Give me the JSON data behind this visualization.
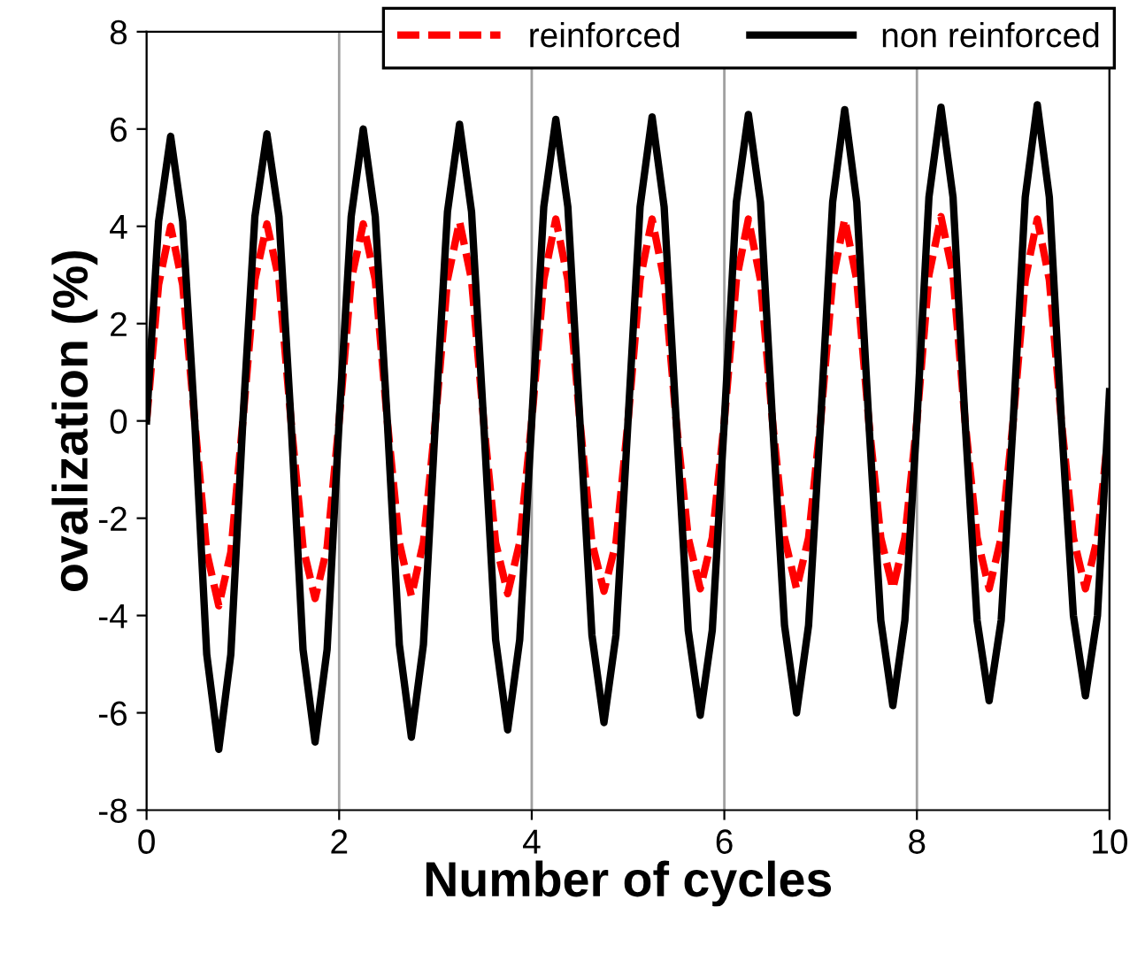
{
  "chart_data": {
    "type": "line",
    "xlabel": "Number of cycles",
    "ylabel": "ovalization (%)",
    "x": [
      0,
      0.125,
      0.25,
      0.375,
      0.5,
      0.625,
      0.75,
      0.875,
      1,
      1.125,
      1.25,
      1.375,
      1.5,
      1.625,
      1.75,
      1.875,
      2,
      2.125,
      2.25,
      2.375,
      2.5,
      2.625,
      2.75,
      2.875,
      3,
      3.125,
      3.25,
      3.375,
      3.5,
      3.625,
      3.75,
      3.875,
      4,
      4.125,
      4.25,
      4.375,
      4.5,
      4.625,
      4.75,
      4.875,
      5,
      5.125,
      5.25,
      5.375,
      5.5,
      5.625,
      5.75,
      5.875,
      6,
      6.125,
      6.25,
      6.375,
      6.5,
      6.625,
      6.75,
      6.875,
      7,
      7.125,
      7.25,
      7.375,
      7.5,
      7.625,
      7.75,
      7.875,
      8,
      8.125,
      8.25,
      8.375,
      8.5,
      8.625,
      8.75,
      8.875,
      9,
      9.125,
      9.25,
      9.375,
      9.5,
      9.625,
      9.75,
      9.875,
      10
    ],
    "series": [
      {
        "name": "reinforced",
        "color": "#ff0000",
        "line_style": "dashed",
        "values": [
          0,
          2.8,
          4.0,
          2.8,
          0,
          -2.7,
          -3.8,
          -2.7,
          0,
          2.9,
          4.05,
          2.9,
          0,
          -2.6,
          -3.65,
          -2.6,
          0,
          2.9,
          4.05,
          2.9,
          0,
          -2.5,
          -3.6,
          -2.5,
          0,
          2.9,
          4.1,
          2.9,
          0,
          -2.5,
          -3.55,
          -2.5,
          0,
          2.9,
          4.15,
          2.9,
          0,
          -2.5,
          -3.5,
          -2.5,
          0,
          2.9,
          4.15,
          2.9,
          0,
          -2.4,
          -3.45,
          -2.4,
          0,
          2.9,
          4.15,
          2.9,
          0,
          -2.4,
          -3.45,
          -2.4,
          0,
          2.9,
          4.15,
          2.9,
          0,
          -2.4,
          -3.45,
          -2.4,
          0,
          3.0,
          4.2,
          3.0,
          0,
          -2.4,
          -3.45,
          -2.4,
          0,
          2.9,
          4.15,
          2.9,
          0,
          -2.4,
          -3.45,
          -2.4,
          0
        ]
      },
      {
        "name": "non reinforced",
        "color": "#000000",
        "line_style": "solid",
        "values": [
          0,
          4.1,
          5.85,
          4.1,
          0,
          -4.8,
          -6.75,
          -4.8,
          0,
          4.2,
          5.9,
          4.2,
          0,
          -4.7,
          -6.6,
          -4.7,
          0,
          4.2,
          6.0,
          4.2,
          0,
          -4.6,
          -6.5,
          -4.6,
          0,
          4.3,
          6.1,
          4.3,
          0,
          -4.5,
          -6.35,
          -4.5,
          0,
          4.4,
          6.2,
          4.4,
          0,
          -4.4,
          -6.2,
          -4.4,
          0,
          4.4,
          6.25,
          4.4,
          0,
          -4.3,
          -6.05,
          -4.3,
          0,
          4.5,
          6.3,
          4.5,
          0,
          -4.2,
          -6.0,
          -4.2,
          0,
          4.5,
          6.4,
          4.5,
          0,
          -4.1,
          -5.85,
          -4.1,
          0,
          4.6,
          6.45,
          4.6,
          0,
          -4.1,
          -5.75,
          -4.1,
          0,
          4.6,
          6.5,
          4.6,
          0,
          -4.0,
          -5.65,
          -4.0,
          0.6
        ]
      }
    ],
    "xlim": [
      0,
      10
    ],
    "xticks": [
      0,
      2,
      4,
      6,
      8,
      10
    ],
    "ylim": [
      -8,
      8
    ],
    "yticks": [
      -8,
      -6,
      -4,
      -2,
      0,
      2,
      4,
      6,
      8
    ],
    "grid": "x",
    "legend": "top right",
    "marker": "none"
  }
}
